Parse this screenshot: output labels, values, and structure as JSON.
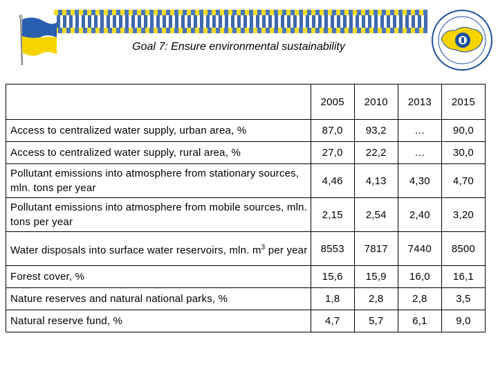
{
  "header": {
    "title": "Goal 7: Ensure environmental sustainability"
  },
  "colors": {
    "flag_blue": "#2a5fb0",
    "flag_yellow": "#f5d400",
    "emblem_blue": "#1d4e9e"
  },
  "icons": {
    "flag": "ukraine-flag-icon",
    "emblem": "statistics-emblem-icon"
  },
  "table": {
    "years": [
      "2005",
      "2010",
      "2013",
      "2015"
    ],
    "rows": [
      {
        "label": "Access to centralized water supply, urban area, %",
        "values": [
          "87,0",
          "93,2",
          "…",
          "90,0"
        ]
      },
      {
        "label": "Access to centralized water supply, rural area, %",
        "values": [
          "27,0",
          "22,2",
          "…",
          "30,0"
        ]
      },
      {
        "label": "Pollutant emissions into atmosphere from stationary sources, mln. tons per year",
        "values": [
          "4,46",
          "4,13",
          "4,30",
          "4,70"
        ]
      },
      {
        "label": "Pollutant emissions into atmosphere from mobile sources, mln. tons per year",
        "values": [
          "2,15",
          "2,54",
          "2,40",
          "3,20"
        ]
      },
      {
        "label_main": "Water disposals into surface water reservoirs, mln. m",
        "label_sup": "3",
        "label_tail": "per year",
        "values": [
          "8553",
          "7817",
          "7440",
          "8500"
        ]
      },
      {
        "label": "Forest cover, %",
        "values": [
          "15,6",
          "15,9",
          "16,0",
          "16,1"
        ]
      },
      {
        "label": "Nature reserves and natural national parks, %",
        "values": [
          "1,8",
          "2,8",
          "2,8",
          "3,5"
        ]
      },
      {
        "label": "Natural reserve fund, %",
        "values": [
          "4,7",
          "5,7",
          "6,1",
          "9,0"
        ]
      }
    ]
  }
}
